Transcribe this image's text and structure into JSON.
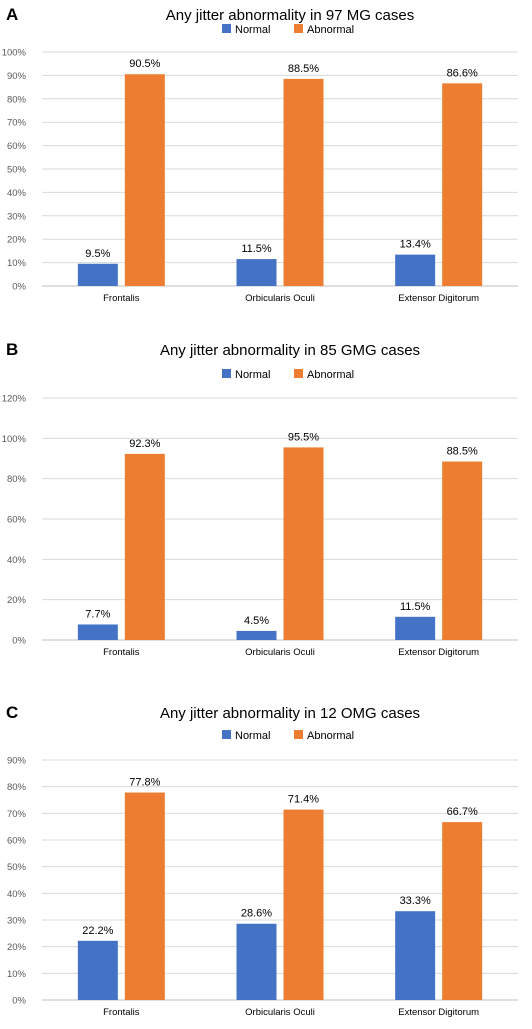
{
  "colors": {
    "normal": "#4472C4",
    "abnormal": "#ED7D31",
    "grid": "#D9D9D9",
    "axis": "#BFBFBF",
    "text": "#000000",
    "tick_text": "#595959"
  },
  "chart_data": [
    {
      "type": "bar",
      "panel_label": "A",
      "title": "Any jitter abnormality in 97 MG cases",
      "legend_position": "top",
      "categories": [
        "Frontalis",
        "Orbicularis Oculi",
        "Extensor Digitorum"
      ],
      "series": [
        {
          "name": "Normal",
          "values": [
            9.5,
            11.5,
            13.4
          ],
          "labels": [
            "9.5%",
            "11.5%",
            "13.4%"
          ]
        },
        {
          "name": "Abnormal",
          "values": [
            90.5,
            88.5,
            86.6
          ],
          "labels": [
            "90.5%",
            "88.5%",
            "86.6%"
          ]
        }
      ],
      "ylim": [
        0,
        100
      ],
      "yticks": [
        0,
        10,
        20,
        30,
        40,
        50,
        60,
        70,
        80,
        90,
        100
      ],
      "ytick_labels": [
        "0%",
        "10%",
        "20%",
        "30%",
        "40%",
        "50%",
        "60%",
        "70%",
        "80%",
        "90%",
        "100%"
      ],
      "grid": true
    },
    {
      "type": "bar",
      "panel_label": "B",
      "title": "Any jitter abnormality in 85 GMG cases",
      "legend_position": "top",
      "categories": [
        "Frontalis",
        "Orbicularis Oculi",
        "Extensor Digitorum"
      ],
      "series": [
        {
          "name": "Normal",
          "values": [
            7.7,
            4.5,
            11.5
          ],
          "labels": [
            "7.7%",
            "4.5%",
            "11.5%"
          ]
        },
        {
          "name": "Abnormal",
          "values": [
            92.3,
            95.5,
            88.5
          ],
          "labels": [
            "92.3%",
            "95.5%",
            "88.5%"
          ]
        }
      ],
      "ylim": [
        0,
        120
      ],
      "yticks": [
        0,
        20,
        40,
        60,
        80,
        100,
        120
      ],
      "ytick_labels": [
        "0%",
        "20%",
        "40%",
        "60%",
        "80%",
        "100%",
        "120%"
      ],
      "grid": true
    },
    {
      "type": "bar",
      "panel_label": "C",
      "title": "Any jitter abnormality in 12 OMG cases",
      "legend_position": "top",
      "categories": [
        "Frontalis",
        "Orbicularis Oculi",
        "Extensor Digitorum"
      ],
      "series": [
        {
          "name": "Normal",
          "values": [
            22.2,
            28.6,
            33.3
          ],
          "labels": [
            "22.2%",
            "28.6%",
            "33.3%"
          ]
        },
        {
          "name": "Abnormal",
          "values": [
            77.8,
            71.4,
            66.7
          ],
          "labels": [
            "77.8%",
            "71.4%",
            "66.7%"
          ]
        }
      ],
      "ylim": [
        0,
        90
      ],
      "yticks": [
        0,
        10,
        20,
        30,
        40,
        50,
        60,
        70,
        80,
        90
      ],
      "ytick_labels": [
        "0%",
        "10%",
        "20%",
        "30%",
        "40%",
        "50%",
        "60%",
        "70%",
        "80%",
        "90%"
      ],
      "grid": true
    }
  ]
}
